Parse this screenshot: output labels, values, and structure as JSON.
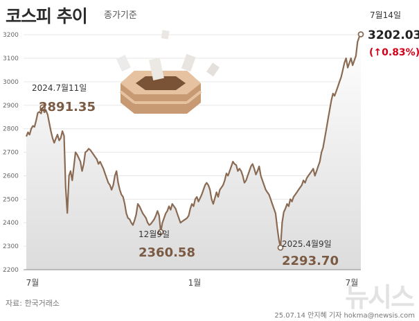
{
  "header": {
    "title": "코스피 추이",
    "subtitle": "종가기준"
  },
  "footer": {
    "source": "자료: 한국거래소",
    "credit": "25.07.14 안지혜 기자 hokma@newsis.com",
    "watermark": "뉴시스"
  },
  "colors": {
    "line": "#8a6a52",
    "label": "#7a5a42",
    "area_top": "#ffffff",
    "area_bottom": "#dcdcdc",
    "up": "#d0021b"
  },
  "decoration": "ballot-box-illustration",
  "chart_data": {
    "type": "line",
    "title": "코스피 추이",
    "subtitle": "종가기준",
    "y_ticks": [
      2200,
      2300,
      2400,
      2500,
      2600,
      2700,
      2800,
      2900,
      3000,
      3100,
      3200
    ],
    "ylim": [
      2200,
      3230
    ],
    "x_ticks": [
      "7월",
      "1월",
      "7월"
    ],
    "grid": "horizontal",
    "series": [
      {
        "values": [
          2767,
          2785,
          2775,
          2800,
          2812,
          2808,
          2835,
          2868,
          2872,
          2865,
          2891.35,
          2870,
          2878,
          2860,
          2825,
          2790,
          2760,
          2740,
          2758,
          2775,
          2750,
          2760,
          2790,
          2770,
          2550,
          2441,
          2600,
          2620,
          2580,
          2640,
          2700,
          2690,
          2675,
          2660,
          2620,
          2650,
          2700,
          2705,
          2715,
          2710,
          2700,
          2690,
          2680,
          2670,
          2650,
          2660,
          2645,
          2630,
          2610,
          2590,
          2570,
          2560,
          2540,
          2560,
          2600,
          2620,
          2570,
          2540,
          2520,
          2510,
          2480,
          2440,
          2420,
          2415,
          2400,
          2390,
          2410,
          2435,
          2480,
          2470,
          2455,
          2440,
          2430,
          2420,
          2400,
          2390,
          2395,
          2405,
          2415,
          2430,
          2450,
          2430,
          2360.58,
          2400,
          2420,
          2440,
          2450,
          2470,
          2455,
          2480,
          2470,
          2460,
          2440,
          2420,
          2400,
          2405,
          2410,
          2415,
          2420,
          2430,
          2460,
          2480,
          2470,
          2500,
          2510,
          2490,
          2505,
          2520,
          2540,
          2560,
          2570,
          2560,
          2540,
          2500,
          2480,
          2505,
          2530,
          2510,
          2540,
          2550,
          2560,
          2580,
          2610,
          2600,
          2620,
          2640,
          2660,
          2650,
          2645,
          2620,
          2630,
          2620,
          2600,
          2570,
          2580,
          2600,
          2620,
          2640,
          2650,
          2630,
          2605,
          2620,
          2640,
          2600,
          2580,
          2560,
          2540,
          2530,
          2520,
          2500,
          2480,
          2460,
          2440,
          2380,
          2330,
          2293.7,
          2400,
          2445,
          2460,
          2480,
          2470,
          2500,
          2490,
          2510,
          2520,
          2530,
          2540,
          2550,
          2560,
          2580,
          2570,
          2590,
          2600,
          2610,
          2620,
          2630,
          2600,
          2620,
          2640,
          2660,
          2700,
          2720,
          2760,
          2800,
          2840,
          2880,
          2920,
          2950,
          2940,
          2960,
          2980,
          3000,
          3020,
          3050,
          3080,
          3100,
          3060,
          3080,
          3100,
          3070,
          3090,
          3110,
          3170,
          3190,
          3202.03
        ]
      }
    ],
    "annotations": [
      {
        "date": "2024.7월11일",
        "value": "2891.35"
      },
      {
        "date": "12월9일",
        "value": "2360.58"
      },
      {
        "date": "2025.4월9일",
        "value": "2293.70"
      },
      {
        "date": "7월14일",
        "value": "3202.03",
        "change": "0.83%",
        "direction": "up"
      }
    ]
  }
}
